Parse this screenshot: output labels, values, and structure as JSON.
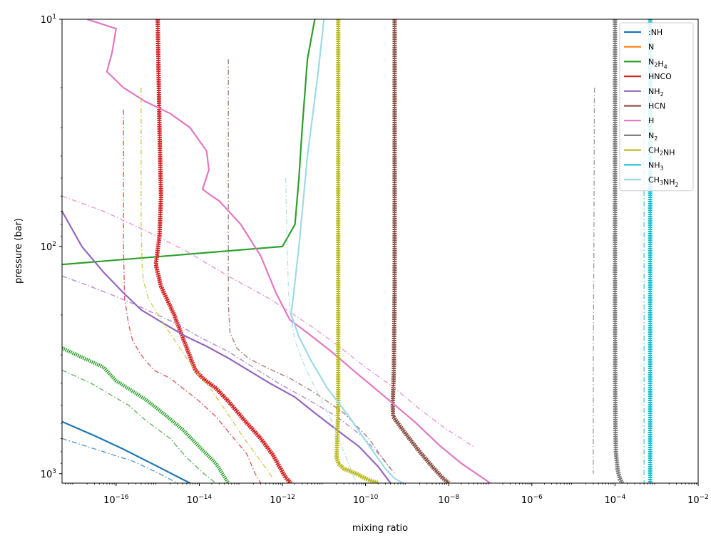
{
  "chart_data": {
    "type": "line",
    "xlabel": "mixing ratio",
    "ylabel": "pressure (bar)",
    "xscale": "log",
    "yscale": "log",
    "xlim": [
      5e-18,
      0.01
    ],
    "ylim": [
      1100,
      10
    ],
    "y_inverted": true,
    "grid": false,
    "legend_position": "top-right",
    "x_ticks": [
      {
        "value": 1e-16,
        "base": "10",
        "exp": "−16"
      },
      {
        "value": 1e-14,
        "base": "10",
        "exp": "−14"
      },
      {
        "value": 1e-12,
        "base": "10",
        "exp": "−12"
      },
      {
        "value": 1e-10,
        "base": "10",
        "exp": "−10"
      },
      {
        "value": 1e-08,
        "base": "10",
        "exp": "−8"
      },
      {
        "value": 1e-06,
        "base": "10",
        "exp": "−6"
      },
      {
        "value": 0.0001,
        "base": "10",
        "exp": "−4"
      },
      {
        "value": 0.01,
        "base": "10",
        "exp": "−2"
      }
    ],
    "y_ticks": [
      {
        "value": 10,
        "base": "10",
        "exp": "1"
      },
      {
        "value": 100,
        "base": "10",
        "exp": "2"
      },
      {
        "value": 1000,
        "base": "10",
        "exp": "3"
      }
    ],
    "series": [
      {
        "name": ":NH",
        "sub": [],
        "color": "#1f77b4",
        "x": [
          5e-18,
          3e-17,
          1.5e-16,
          1e-15,
          6e-15
        ],
        "y": [
          590,
          680,
          780,
          930,
          1100
        ],
        "x_alt": [
          5e-18,
          4e-17,
          2.5e-16,
          1e-15,
          3e-15
        ],
        "y_alt": [
          700,
          790,
          880,
          990,
          1100
        ]
      },
      {
        "name": "N",
        "sub": [],
        "color": "#ff7f0e",
        "x": [],
        "y": []
      },
      {
        "name": "N2H4",
        "sub": [
          [
            "N",
            false
          ],
          [
            "2",
            true
          ],
          [
            "H",
            false
          ],
          [
            "4",
            true
          ]
        ],
        "color": "#2ca02c",
        "x": [
          5e-18,
          1e-18,
          5e-18,
          1e-12,
          2e-12,
          2.5e-12,
          3e-12,
          4e-12,
          6e-12
        ],
        "y": [
          120,
          120,
          120,
          100,
          80,
          50,
          30,
          15,
          10
        ],
        "x_thick": [
          5e-18,
          5e-17,
          1e-16,
          5e-16,
          1.5e-15,
          4e-15,
          1e-14,
          2.5e-14,
          5e-14
        ],
        "y_thick": [
          280,
          340,
          390,
          470,
          550,
          640,
          760,
          900,
          1100
        ],
        "x_alt": [
          5e-18,
          2.5e-17,
          2e-16,
          5e-16,
          2e-15,
          5e-15,
          1.3e-14,
          2.5e-14
        ],
        "y_alt": [
          350,
          400,
          500,
          580,
          700,
          850,
          1000,
          1100
        ]
      },
      {
        "name": "HNCO",
        "sub": [],
        "color": "#d62728",
        "x": [
          1e-15,
          1.1e-15,
          1.2e-15,
          1.1e-15,
          9e-16,
          1.2e-15,
          2.5e-15,
          5e-15,
          8e-15,
          1.2e-14,
          2.5e-14,
          5e-14,
          1.2e-13,
          3e-13,
          6e-13,
          9e-13,
          1.2e-12,
          1.6e-12
        ],
        "y": [
          10,
          30,
          60,
          90,
          120,
          150,
          200,
          280,
          350,
          380,
          420,
          480,
          580,
          700,
          830,
          950,
          1040,
          1100
        ],
        "x_alt": [
          1.5e-16,
          1.5e-16,
          1.6e-16,
          2e-16,
          2.5e-16,
          4e-16,
          8e-16,
          2e-15,
          4e-15,
          1e-14,
          2.5e-14,
          6e-14,
          1.4e-13,
          2.2e-13,
          3e-13
        ],
        "y_alt": [
          25,
          100,
          170,
          220,
          260,
          300,
          350,
          380,
          420,
          480,
          560,
          680,
          820,
          1000,
          1100
        ]
      },
      {
        "name": "NH2",
        "sub": [
          [
            "NH",
            false
          ],
          [
            "2",
            true
          ]
        ],
        "color": "#9467bd",
        "x": [
          5e-18,
          1.5e-17,
          5e-17,
          1.5e-16,
          4e-16,
          1.5e-15,
          5e-15,
          1.5e-14,
          5e-14,
          1.5e-13,
          5e-13,
          2e-12,
          6e-12,
          2e-11,
          7e-11,
          2e-10,
          4e-10
        ],
        "y": [
          70,
          100,
          130,
          160,
          190,
          220,
          250,
          275,
          310,
          350,
          400,
          460,
          540,
          640,
          760,
          930,
          1100
        ],
        "x_alt": [
          5e-18,
          1.5e-17,
          6e-17,
          2e-16,
          1e-15,
          3e-15,
          1e-14,
          5e-14,
          2e-13,
          8e-13,
          4e-12,
          2e-11,
          8e-11,
          2.5e-10,
          5e-10
        ],
        "y_alt": [
          135,
          145,
          160,
          175,
          200,
          220,
          250,
          290,
          340,
          400,
          470,
          560,
          680,
          850,
          1000
        ]
      },
      {
        "name": "HCN",
        "sub": [],
        "color": "#8c564b",
        "x": [
          5e-10,
          5e-10,
          4.8e-10,
          4.5e-10,
          4.6e-10,
          6e-10,
          1e-09,
          2e-09,
          4e-09,
          7e-09,
          1e-08
        ],
        "y": [
          10,
          150,
          350,
          500,
          560,
          600,
          680,
          800,
          930,
          1040,
          1100
        ],
        "x_alt": [
          5e-14,
          5e-14,
          5e-14,
          5.5e-14,
          8e-14,
          1.5e-13,
          4e-13,
          1.5e-12,
          6e-12,
          3e-11,
          1.2e-10,
          2.5e-10,
          4e-10
        ],
        "y_alt": [
          15,
          100,
          180,
          240,
          280,
          310,
          340,
          380,
          440,
          540,
          700,
          850,
          950
        ]
      },
      {
        "name": "H",
        "sub": [],
        "color": "#e377c2",
        "x": [
          2e-17,
          1e-16,
          8e-17,
          6e-17,
          1.5e-16,
          5e-16,
          2e-15,
          6e-15,
          1.5e-14,
          1.7e-14,
          1.2e-14,
          2e-14,
          3e-14,
          1e-13,
          3e-13,
          7e-13,
          1.5e-12,
          4e-12,
          1.5e-11,
          6e-11,
          3e-10,
          1.5e-09,
          6e-09,
          2e-08,
          1e-07
        ],
        "y": [
          10,
          11,
          14,
          17,
          20,
          23,
          26,
          30,
          38,
          46,
          56,
          60,
          63,
          80,
          110,
          160,
          210,
          240,
          290,
          360,
          460,
          590,
          750,
          900,
          1100
        ],
        "x_alt": [
          5e-18,
          5e-17,
          5e-16,
          5e-15,
          5e-14,
          5e-13,
          5e-12,
          2e-11,
          1e-10,
          5e-10,
          2e-09,
          8e-09,
          4e-08
        ],
        "y_alt": [
          60,
          70,
          85,
          105,
          135,
          170,
          225,
          270,
          340,
          420,
          520,
          630,
          760
        ]
      },
      {
        "name": "N2",
        "sub": [
          [
            "N",
            false
          ],
          [
            "2",
            true
          ]
        ],
        "color": "#7f7f7f",
        "x": [
          0.0001,
          0.0001,
          0.000102,
          0.000105,
          0.000115,
          0.00013,
          0.00015
        ],
        "y": [
          10,
          200,
          600,
          800,
          950,
          1050,
          1100
        ],
        "x_alt": [
          3.2e-05,
          3.1e-05,
          3e-05,
          3e-05,
          3e-05
        ],
        "y_alt": [
          20,
          100,
          300,
          700,
          1000
        ]
      },
      {
        "name": "CH2NH",
        "sub": [
          [
            "CH",
            false
          ],
          [
            "2",
            true
          ],
          [
            "NH",
            false
          ]
        ],
        "color": "#bcbd22",
        "x": [
          2.2e-11,
          2.2e-11,
          2.2e-11,
          2.1e-11,
          2e-11,
          2.2e-11,
          3e-11,
          6e-11,
          1e-10,
          1.5e-10,
          2e-10
        ],
        "y": [
          10,
          200,
          500,
          700,
          840,
          900,
          950,
          1000,
          1050,
          1080,
          1100
        ],
        "x_alt": [
          4e-16,
          4e-16,
          4.2e-16,
          4.5e-16,
          6e-16,
          1.2e-15,
          3e-15,
          7e-15,
          2e-14,
          5e-14,
          1.2e-13,
          3e-13,
          6e-13
        ],
        "y_alt": [
          20,
          80,
          120,
          140,
          170,
          210,
          270,
          340,
          430,
          550,
          700,
          880,
          1050
        ]
      },
      {
        "name": "NH3",
        "sub": [
          [
            "NH",
            false
          ],
          [
            "3",
            true
          ]
        ],
        "color": "#17becf",
        "x": [
          0.0007,
          0.0007,
          0.0007,
          0.0007,
          0.0007
        ],
        "y": [
          10,
          100,
          500,
          900,
          1100
        ],
        "x_alt": [
          0.0005,
          0.0005,
          0.0005,
          0.0005,
          0.0005
        ],
        "y_alt": [
          20,
          100,
          500,
          900,
          1100
        ]
      },
      {
        "name": "CH3NH2",
        "sub": [
          [
            "CH",
            false
          ],
          [
            "3",
            true
          ],
          [
            "NH",
            false
          ],
          [
            "2",
            true
          ]
        ],
        "color": "#9edae5",
        "x": [
          1e-11,
          7e-12,
          4e-12,
          2.5e-12,
          1.8e-12,
          1.6e-12,
          1.8e-12,
          2.5e-12,
          5e-12,
          1.2e-11,
          4e-11,
          1.2e-10,
          3e-10,
          5e-10,
          8e-10
        ],
        "y": [
          10,
          18,
          40,
          100,
          170,
          200,
          210,
          250,
          320,
          420,
          560,
          750,
          950,
          1050,
          1100
        ],
        "x_alt": [
          1.2e-12,
          1.3e-12,
          1.4e-12,
          1.6e-12,
          2e-12,
          3.5e-12,
          7e-12,
          1.5e-11,
          3e-11,
          6e-11
        ],
        "y_alt": [
          50,
          100,
          160,
          200,
          260,
          340,
          440,
          580,
          800,
          1100
        ]
      }
    ]
  }
}
